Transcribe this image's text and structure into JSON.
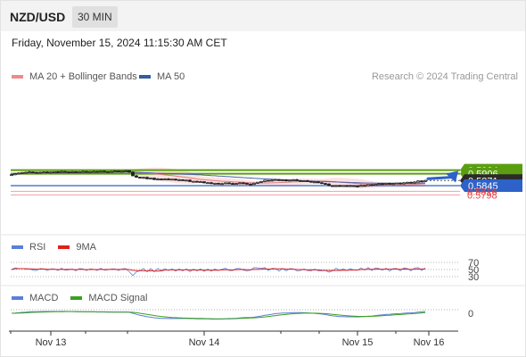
{
  "header": {
    "pair": "NZD/USD",
    "timeframe": "30 MIN",
    "datetime": "Friday, November 15, 2024 11:15:30 AM CET"
  },
  "legend": {
    "ma20": "MA 20 + Bollinger Bands",
    "ma50": "MA 50",
    "credit": "Research © 2024 Trading Central"
  },
  "colors": {
    "green": "#5a9e10",
    "blue": "#2d62c8",
    "red": "#e04545",
    "dark": "#2b2b2b",
    "band": "#fde2e2",
    "ma20": "#e07a7a",
    "ma50": "#4a5fa8"
  },
  "chart_data": [
    {
      "type": "candlestick",
      "x_ticks": [
        "Nov 13",
        "Nov 14",
        "Nov 15",
        "Nov 16"
      ],
      "price_levels": [
        {
          "label": "0.5924",
          "value": 0.5924,
          "color": "green",
          "kind": "resistance"
        },
        {
          "label": "0.5906",
          "value": 0.5906,
          "color": "green",
          "kind": "resistance"
        },
        {
          "label": "0.5871",
          "value": 0.5871,
          "color": "dark",
          "kind": "last-price"
        },
        {
          "label": "0.5845",
          "value": 0.5845,
          "color": "blue",
          "kind": "pivot"
        },
        {
          "label": "0.5816",
          "value": 0.5816,
          "color": "red",
          "kind": "support"
        },
        {
          "label": "0.5798",
          "value": 0.5798,
          "color": "red",
          "kind": "support"
        }
      ],
      "close": [
        0.5901,
        0.5906,
        0.5909,
        0.5912,
        0.5913,
        0.5915,
        0.5913,
        0.591,
        0.5913,
        0.5915,
        0.5912,
        0.5914,
        0.5916,
        0.5913,
        0.5917,
        0.5915,
        0.5914,
        0.5916,
        0.5912,
        0.5915,
        0.5917,
        0.5914,
        0.5916,
        0.5917,
        0.5914,
        0.5918,
        0.5916,
        0.5915,
        0.5917,
        0.5919,
        0.5916,
        0.5918,
        0.5921,
        0.5914,
        0.5895,
        0.5888,
        0.5884,
        0.5887,
        0.588,
        0.5883,
        0.5876,
        0.5879,
        0.5876,
        0.5879,
        0.5876,
        0.5878,
        0.5873,
        0.5875,
        0.5871,
        0.5873,
        0.5866,
        0.5867,
        0.5863,
        0.5865,
        0.5859,
        0.586,
        0.5855,
        0.5857,
        0.5854,
        0.5855,
        0.5859,
        0.5856,
        0.5853,
        0.5856,
        0.5859,
        0.5857,
        0.5853,
        0.5851,
        0.5857,
        0.5862,
        0.5866,
        0.5872,
        0.5869,
        0.5873,
        0.5876,
        0.5871,
        0.5874,
        0.587,
        0.5873,
        0.5875,
        0.5871,
        0.5868,
        0.587,
        0.5867,
        0.5863,
        0.5864,
        0.586,
        0.5856,
        0.5853,
        0.5845,
        0.5841,
        0.5845,
        0.5843,
        0.5845,
        0.5842,
        0.5845,
        0.5843,
        0.5841,
        0.5846,
        0.5844,
        0.585,
        0.5847,
        0.5852,
        0.5855,
        0.5853,
        0.5857,
        0.5852,
        0.5855,
        0.5858,
        0.5854,
        0.5859,
        0.5862,
        0.5858,
        0.5863,
        0.5869,
        0.5866,
        0.5871
      ],
      "forecast_arrow": {
        "from": 0.5871,
        "to": 0.5906
      },
      "rsi_levels": [
        70,
        50,
        30
      ],
      "macd_levels": [
        0
      ],
      "rsi_legend": [
        "RSI",
        "9MA"
      ],
      "macd_legend": [
        "MACD",
        "MACD Signal"
      ]
    }
  ]
}
